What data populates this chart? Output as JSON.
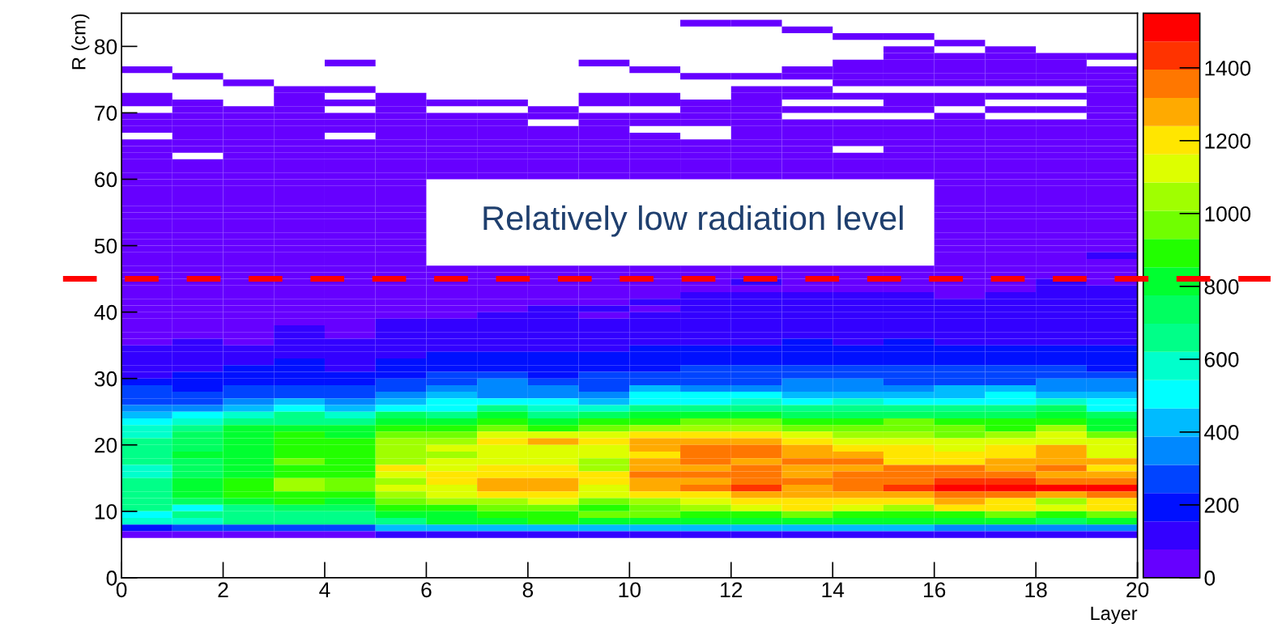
{
  "chart_data": {
    "type": "heatmap",
    "xlabel": "Layer",
    "ylabel": "R (cm)",
    "annotations": [
      "Relatively low radiation level"
    ],
    "x": [
      0.5,
      1.5,
      2.5,
      3.5,
      4.5,
      5.5,
      6.5,
      7.5,
      8.5,
      9.5,
      10.5,
      11.5,
      12.5,
      13.5,
      14.5,
      15.5,
      16.5,
      17.5,
      18.5,
      19.5
    ],
    "y": [
      83.5,
      82.5,
      81.5,
      80.5,
      79.5,
      78.5,
      77.5,
      76.5,
      75.5,
      74.5,
      73.5,
      72.5,
      71.5,
      70.5,
      69.5,
      68.5,
      67.5,
      66.5,
      65.5,
      64.5,
      63.5,
      62.5,
      61.5,
      60.5,
      59.5,
      58.5,
      57.5,
      56.5,
      55.5,
      54.5,
      53.5,
      52.5,
      51.5,
      50.5,
      49.5,
      48.5,
      47.5,
      46.5,
      45.5,
      44.5,
      43.5,
      42.5,
      41.5,
      40.5,
      39.5,
      38.5,
      37.5,
      36.5,
      35.5,
      34.5,
      33.5,
      32.5,
      31.5,
      30.5,
      29.5,
      28.5,
      27.5,
      26.5,
      25.5,
      24.5,
      23.5,
      22.5,
      21.5,
      20.5,
      19.5,
      18.5,
      17.5,
      16.5,
      15.5,
      14.5,
      13.5,
      12.5,
      11.5,
      10.5,
      9.5,
      8.5,
      7.5,
      6.5
    ],
    "xlim": [
      0,
      20
    ],
    "ylim": [
      0,
      85
    ],
    "xticks": [
      0,
      2,
      4,
      6,
      8,
      10,
      12,
      14,
      16,
      18,
      20
    ],
    "yticks": [
      0,
      10,
      20,
      30,
      40,
      50,
      60,
      70,
      80
    ],
    "clim": [
      0,
      1550
    ],
    "cticks": [
      0,
      200,
      400,
      600,
      800,
      1000,
      1200,
      1400
    ],
    "colors": [
      "#6600ff",
      "#3300ff",
      "#0010ff",
      "#0044ff",
      "#0088ff",
      "#00bbff",
      "#00ffff",
      "#00ffcc",
      "#00ff88",
      "#00ff60",
      "#00ff30",
      "#22ff00",
      "#70ff00",
      "#a0ff00",
      "#ddff00",
      "#ffe600",
      "#ffaa00",
      "#ff7700",
      "#ff3300",
      "#ff0000"
    ],
    "ref_lines": [
      {
        "axis": "y",
        "value": 45,
        "color": "#ff0000",
        "line_style": "dashed"
      }
    ],
    "cells": [
      [
        null,
        null,
        null,
        null,
        null,
        null,
        null,
        null,
        null,
        null,
        null,
        40,
        40,
        null,
        null,
        null,
        null,
        null,
        null,
        null
      ],
      [
        null,
        null,
        null,
        null,
        null,
        null,
        null,
        null,
        null,
        null,
        null,
        null,
        null,
        40,
        null,
        null,
        null,
        null,
        null,
        null
      ],
      [
        null,
        null,
        null,
        null,
        null,
        null,
        null,
        null,
        null,
        null,
        null,
        null,
        null,
        null,
        40,
        40,
        null,
        null,
        null,
        null
      ],
      [
        null,
        null,
        null,
        null,
        null,
        null,
        null,
        null,
        null,
        null,
        null,
        null,
        null,
        null,
        null,
        null,
        40,
        null,
        null,
        null
      ],
      [
        null,
        null,
        null,
        null,
        null,
        null,
        null,
        null,
        null,
        null,
        null,
        null,
        null,
        null,
        null,
        40,
        null,
        40,
        null,
        null
      ],
      [
        null,
        null,
        null,
        null,
        null,
        null,
        null,
        null,
        null,
        null,
        null,
        null,
        null,
        null,
        null,
        40,
        40,
        40,
        40,
        40
      ],
      [
        null,
        null,
        null,
        null,
        40,
        null,
        null,
        null,
        null,
        40,
        null,
        null,
        null,
        null,
        40,
        40,
        40,
        40,
        40,
        null
      ],
      [
        40,
        null,
        null,
        null,
        null,
        null,
        null,
        null,
        null,
        null,
        40,
        null,
        null,
        40,
        40,
        40,
        40,
        40,
        40,
        40
      ],
      [
        null,
        40,
        null,
        null,
        null,
        null,
        null,
        null,
        null,
        null,
        null,
        40,
        40,
        40,
        40,
        40,
        40,
        40,
        40,
        40
      ],
      [
        null,
        null,
        40,
        null,
        null,
        null,
        null,
        null,
        null,
        null,
        null,
        null,
        null,
        null,
        40,
        40,
        40,
        40,
        40,
        40
      ],
      [
        null,
        null,
        null,
        40,
        40,
        null,
        null,
        null,
        null,
        null,
        null,
        null,
        40,
        40,
        null,
        null,
        null,
        null,
        null,
        40
      ],
      [
        40,
        null,
        null,
        40,
        null,
        40,
        null,
        null,
        null,
        40,
        40,
        null,
        40,
        40,
        40,
        40,
        40,
        40,
        40,
        40
      ],
      [
        40,
        40,
        null,
        40,
        40,
        40,
        40,
        40,
        null,
        40,
        40,
        40,
        40,
        null,
        null,
        40,
        40,
        null,
        null,
        40
      ],
      [
        null,
        40,
        40,
        40,
        null,
        40,
        null,
        null,
        40,
        null,
        null,
        40,
        40,
        40,
        40,
        40,
        null,
        40,
        40,
        40
      ],
      [
        40,
        40,
        40,
        40,
        40,
        40,
        40,
        40,
        40,
        40,
        40,
        40,
        40,
        null,
        null,
        null,
        40,
        null,
        null,
        40
      ],
      [
        40,
        40,
        40,
        40,
        40,
        40,
        40,
        40,
        null,
        40,
        40,
        40,
        40,
        40,
        40,
        40,
        40,
        40,
        40,
        40
      ],
      [
        40,
        40,
        40,
        40,
        40,
        40,
        40,
        40,
        40,
        40,
        null,
        null,
        40,
        40,
        40,
        40,
        40,
        40,
        40,
        40
      ],
      [
        null,
        40,
        40,
        40,
        null,
        40,
        40,
        40,
        40,
        40,
        40,
        null,
        40,
        40,
        40,
        40,
        40,
        40,
        40,
        40
      ],
      [
        40,
        40,
        40,
        40,
        40,
        40,
        40,
        40,
        40,
        40,
        40,
        40,
        40,
        40,
        40,
        40,
        40,
        40,
        40,
        40
      ],
      [
        40,
        40,
        40,
        40,
        40,
        40,
        40,
        40,
        40,
        40,
        40,
        40,
        40,
        40,
        null,
        40,
        40,
        40,
        40,
        40
      ],
      [
        40,
        null,
        40,
        40,
        40,
        40,
        40,
        40,
        40,
        40,
        40,
        40,
        40,
        40,
        40,
        40,
        40,
        40,
        40,
        40
      ],
      [
        40,
        40,
        40,
        40,
        40,
        40,
        40,
        40,
        40,
        40,
        40,
        40,
        40,
        40,
        40,
        40,
        40,
        40,
        40,
        40
      ],
      [
        40,
        40,
        40,
        40,
        40,
        40,
        40,
        40,
        40,
        40,
        40,
        40,
        40,
        40,
        40,
        40,
        40,
        40,
        40,
        40
      ],
      [
        40,
        40,
        40,
        40,
        40,
        40,
        40,
        40,
        40,
        40,
        40,
        40,
        40,
        40,
        40,
        40,
        40,
        40,
        40,
        40
      ],
      [
        40,
        40,
        40,
        40,
        40,
        40,
        null,
        null,
        null,
        null,
        null,
        null,
        null,
        null,
        null,
        null,
        40,
        40,
        40,
        40
      ],
      [
        40,
        40,
        40,
        40,
        40,
        40,
        null,
        null,
        null,
        null,
        null,
        null,
        null,
        null,
        null,
        null,
        40,
        40,
        40,
        40
      ],
      [
        40,
        40,
        40,
        40,
        40,
        40,
        null,
        null,
        null,
        null,
        null,
        null,
        null,
        null,
        null,
        null,
        40,
        40,
        40,
        40
      ],
      [
        40,
        40,
        40,
        40,
        40,
        40,
        null,
        null,
        null,
        null,
        null,
        null,
        null,
        null,
        null,
        null,
        40,
        40,
        40,
        40
      ],
      [
        40,
        40,
        40,
        40,
        40,
        40,
        null,
        null,
        null,
        null,
        null,
        null,
        null,
        null,
        null,
        null,
        40,
        40,
        40,
        40
      ],
      [
        40,
        40,
        40,
        40,
        40,
        40,
        null,
        null,
        null,
        null,
        null,
        null,
        null,
        null,
        null,
        null,
        40,
        40,
        40,
        40
      ],
      [
        40,
        40,
        40,
        40,
        40,
        40,
        null,
        null,
        null,
        null,
        null,
        null,
        null,
        null,
        null,
        null,
        40,
        40,
        40,
        40
      ],
      [
        40,
        40,
        40,
        40,
        40,
        40,
        null,
        null,
        null,
        null,
        null,
        null,
        null,
        null,
        null,
        null,
        40,
        40,
        40,
        40
      ],
      [
        40,
        40,
        40,
        40,
        40,
        40,
        null,
        null,
        null,
        null,
        null,
        null,
        null,
        null,
        null,
        null,
        40,
        40,
        40,
        40
      ],
      [
        40,
        40,
        40,
        40,
        40,
        40,
        null,
        null,
        null,
        null,
        null,
        null,
        null,
        null,
        null,
        null,
        40,
        40,
        40,
        40
      ],
      [
        40,
        40,
        40,
        40,
        40,
        40,
        null,
        null,
        null,
        null,
        null,
        null,
        null,
        null,
        null,
        null,
        40,
        40,
        40,
        40
      ],
      [
        40,
        40,
        40,
        40,
        40,
        40,
        null,
        null,
        null,
        null,
        null,
        null,
        null,
        null,
        null,
        null,
        40,
        40,
        40,
        120
      ],
      [
        40,
        40,
        40,
        40,
        40,
        40,
        null,
        null,
        null,
        null,
        null,
        null,
        null,
        null,
        null,
        null,
        40,
        40,
        40,
        40
      ],
      [
        40,
        40,
        40,
        40,
        40,
        40,
        40,
        40,
        40,
        40,
        40,
        40,
        40,
        40,
        40,
        40,
        40,
        40,
        40,
        40
      ],
      [
        40,
        40,
        40,
        40,
        40,
        40,
        40,
        40,
        40,
        40,
        40,
        40,
        40,
        40,
        40,
        40,
        40,
        40,
        40,
        40
      ],
      [
        40,
        40,
        40,
        40,
        40,
        40,
        40,
        40,
        40,
        40,
        40,
        40,
        120,
        40,
        40,
        40,
        40,
        40,
        120,
        40
      ],
      [
        40,
        40,
        40,
        40,
        40,
        40,
        40,
        40,
        40,
        40,
        40,
        40,
        40,
        40,
        40,
        40,
        40,
        40,
        120,
        120
      ],
      [
        40,
        40,
        40,
        40,
        40,
        40,
        40,
        40,
        40,
        40,
        40,
        120,
        120,
        120,
        120,
        120,
        40,
        120,
        120,
        120
      ],
      [
        40,
        40,
        40,
        40,
        40,
        40,
        40,
        40,
        40,
        40,
        120,
        120,
        120,
        120,
        120,
        120,
        120,
        120,
        120,
        120
      ],
      [
        40,
        40,
        40,
        40,
        40,
        40,
        40,
        40,
        120,
        120,
        40,
        120,
        120,
        120,
        120,
        120,
        120,
        120,
        120,
        120
      ],
      [
        40,
        40,
        40,
        40,
        40,
        40,
        40,
        120,
        120,
        40,
        120,
        120,
        120,
        120,
        120,
        120,
        120,
        120,
        120,
        120
      ],
      [
        40,
        40,
        40,
        40,
        40,
        120,
        120,
        120,
        120,
        120,
        120,
        120,
        120,
        120,
        120,
        120,
        120,
        120,
        120,
        120
      ],
      [
        40,
        40,
        40,
        120,
        40,
        120,
        120,
        120,
        120,
        120,
        120,
        120,
        120,
        120,
        120,
        120,
        120,
        120,
        120,
        120
      ],
      [
        40,
        40,
        40,
        120,
        40,
        120,
        120,
        120,
        120,
        120,
        120,
        120,
        120,
        120,
        120,
        120,
        120,
        120,
        120,
        120
      ],
      [
        40,
        120,
        40,
        120,
        120,
        120,
        120,
        120,
        120,
        120,
        120,
        120,
        120,
        190,
        120,
        190,
        120,
        120,
        120,
        120
      ],
      [
        120,
        120,
        120,
        120,
        120,
        120,
        120,
        120,
        120,
        120,
        190,
        190,
        190,
        190,
        190,
        190,
        190,
        190,
        190,
        190
      ],
      [
        120,
        120,
        120,
        120,
        120,
        120,
        190,
        190,
        190,
        190,
        190,
        190,
        190,
        190,
        190,
        190,
        190,
        190,
        190,
        190
      ],
      [
        120,
        120,
        120,
        190,
        120,
        190,
        190,
        190,
        190,
        190,
        190,
        190,
        190,
        190,
        190,
        190,
        190,
        190,
        190,
        190
      ],
      [
        120,
        120,
        190,
        190,
        120,
        190,
        190,
        190,
        190,
        190,
        190,
        270,
        270,
        270,
        270,
        270,
        270,
        270,
        270,
        190
      ],
      [
        120,
        190,
        190,
        190,
        190,
        190,
        270,
        270,
        190,
        270,
        270,
        270,
        270,
        270,
        270,
        270,
        270,
        270,
        270,
        270
      ],
      [
        190,
        190,
        190,
        190,
        190,
        270,
        270,
        350,
        270,
        270,
        270,
        270,
        270,
        350,
        350,
        270,
        270,
        270,
        350,
        350
      ],
      [
        270,
        190,
        270,
        270,
        270,
        270,
        350,
        350,
        350,
        270,
        430,
        350,
        350,
        350,
        350,
        350,
        430,
        430,
        350,
        350
      ],
      [
        270,
        270,
        270,
        270,
        270,
        350,
        430,
        350,
        350,
        350,
        500,
        500,
        500,
        430,
        430,
        430,
        430,
        500,
        430,
        430
      ],
      [
        270,
        270,
        350,
        430,
        350,
        430,
        500,
        500,
        500,
        430,
        500,
        500,
        580,
        500,
        580,
        500,
        500,
        500,
        580,
        500
      ],
      [
        350,
        350,
        430,
        500,
        430,
        500,
        500,
        660,
        580,
        580,
        660,
        660,
        660,
        660,
        660,
        660,
        660,
        660,
        740,
        500
      ],
      [
        430,
        500,
        580,
        660,
        580,
        740,
        660,
        810,
        660,
        740,
        810,
        810,
        810,
        740,
        740,
        740,
        740,
        740,
        810,
        740
      ],
      [
        500,
        580,
        660,
        660,
        660,
        810,
        810,
        890,
        810,
        890,
        890,
        970,
        970,
        890,
        890,
        970,
        890,
        890,
        890,
        810
      ],
      [
        580,
        660,
        810,
        810,
        810,
        890,
        890,
        970,
        890,
        970,
        1050,
        1050,
        1050,
        970,
        970,
        970,
        970,
        890,
        1050,
        810
      ],
      [
        580,
        740,
        810,
        890,
        810,
        970,
        970,
        1120,
        1120,
        1120,
        1200,
        1200,
        1200,
        1120,
        1050,
        1050,
        970,
        1050,
        1120,
        970
      ],
      [
        660,
        740,
        810,
        890,
        890,
        1050,
        1050,
        1200,
        1280,
        1200,
        1280,
        1280,
        1280,
        1200,
        1120,
        1120,
        1120,
        1120,
        1120,
        1120
      ],
      [
        660,
        740,
        810,
        890,
        890,
        1050,
        1120,
        1120,
        1120,
        1120,
        1280,
        1360,
        1360,
        1280,
        1200,
        1200,
        1120,
        1200,
        1280,
        1120
      ],
      [
        660,
        810,
        810,
        890,
        890,
        1050,
        1050,
        1120,
        1120,
        1120,
        1200,
        1360,
        1360,
        1280,
        1280,
        1200,
        1200,
        1200,
        1280,
        1120
      ],
      [
        660,
        740,
        810,
        970,
        890,
        1050,
        1120,
        1120,
        1120,
        1050,
        1280,
        1360,
        1280,
        1360,
        1360,
        1200,
        1200,
        1280,
        1280,
        1280
      ],
      [
        580,
        740,
        810,
        890,
        890,
        1200,
        1120,
        1200,
        1200,
        1050,
        1280,
        1280,
        1360,
        1280,
        1280,
        1360,
        1360,
        1280,
        1360,
        1200
      ],
      [
        580,
        740,
        810,
        890,
        890,
        1120,
        1200,
        1200,
        1200,
        1200,
        1360,
        1360,
        1360,
        1280,
        1360,
        1360,
        1360,
        1360,
        1280,
        1280
      ],
      [
        660,
        810,
        890,
        1050,
        970,
        1050,
        1200,
        1280,
        1280,
        1200,
        1280,
        1280,
        1360,
        1360,
        1360,
        1360,
        1430,
        1430,
        1360,
        1360
      ],
      [
        660,
        810,
        890,
        1050,
        970,
        1120,
        1120,
        1280,
        1280,
        1120,
        1280,
        1360,
        1430,
        1280,
        1360,
        1430,
        1510,
        1510,
        1510,
        1510
      ],
      [
        660,
        810,
        890,
        890,
        890,
        1050,
        1120,
        1200,
        1200,
        1120,
        1200,
        1200,
        1280,
        1280,
        1280,
        1280,
        1360,
        1360,
        1280,
        1360
      ],
      [
        660,
        740,
        810,
        890,
        810,
        970,
        1050,
        1050,
        1120,
        970,
        1050,
        1120,
        1200,
        1200,
        1200,
        1200,
        1280,
        1200,
        1050,
        1200
      ],
      [
        660,
        500,
        660,
        740,
        740,
        890,
        890,
        970,
        970,
        890,
        970,
        1050,
        1120,
        1200,
        1120,
        1050,
        1200,
        1200,
        1120,
        1200
      ],
      [
        500,
        660,
        660,
        660,
        660,
        810,
        810,
        890,
        890,
        970,
        970,
        890,
        890,
        970,
        890,
        890,
        890,
        970,
        890,
        970
      ],
      [
        580,
        580,
        660,
        660,
        660,
        660,
        810,
        810,
        890,
        810,
        810,
        810,
        810,
        810,
        810,
        810,
        810,
        810,
        740,
        810
      ],
      [
        190,
        270,
        270,
        270,
        270,
        430,
        430,
        430,
        430,
        430,
        430,
        430,
        430,
        430,
        430,
        430,
        350,
        350,
        350,
        350
      ],
      [
        40,
        40,
        40,
        40,
        40,
        120,
        120,
        120,
        120,
        120,
        120,
        120,
        120,
        120,
        120,
        120,
        120,
        120,
        120,
        120
      ]
    ]
  }
}
